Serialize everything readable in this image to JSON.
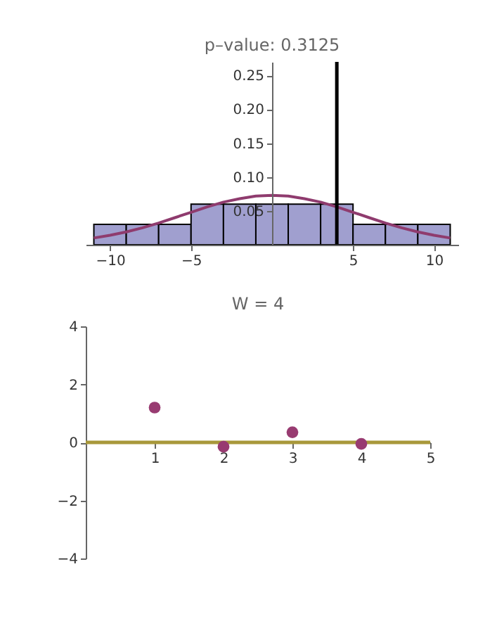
{
  "chart_data": [
    {
      "type": "histogram",
      "title": "p–value: 0.3125",
      "bins": [
        -11,
        -9,
        -7,
        -5,
        -3,
        -1,
        1,
        3,
        5,
        7,
        9,
        11
      ],
      "values": [
        0.03,
        0.03,
        0.03,
        0.06,
        0.06,
        0.06,
        0.06,
        0.06,
        0.03,
        0.03,
        0.03
      ],
      "color": "#a09fcf",
      "series": [
        {
          "type": "line",
          "color": "#8f3b6e",
          "x": [
            -11,
            -10,
            -9,
            -8,
            -7,
            -6,
            -5,
            -4,
            -3,
            -2,
            -1,
            0,
            1,
            2,
            3,
            4,
            5,
            6,
            7,
            8,
            9,
            10,
            11
          ],
          "values": [
            0.01,
            0.014,
            0.019,
            0.025,
            0.032,
            0.04,
            0.048,
            0.056,
            0.063,
            0.068,
            0.072,
            0.073,
            0.072,
            0.068,
            0.063,
            0.056,
            0.048,
            0.04,
            0.032,
            0.025,
            0.019,
            0.014,
            0.01
          ]
        }
      ],
      "xlim": [
        -11.5,
        11.5
      ],
      "xticks": [
        -10,
        -5,
        5,
        10
      ],
      "ylim": [
        0,
        0.27
      ],
      "yticks": [
        0.05,
        {
          "value": 0.1,
          "label": "0.10"
        },
        0.15,
        {
          "value": 0.2,
          "label": "0.20"
        },
        0.25
      ],
      "ref_lines": [
        {
          "axis": "x",
          "value": 4,
          "color": "#000000"
        }
      ]
    },
    {
      "type": "scatter",
      "title": "W = 4",
      "x": [
        1,
        2,
        3,
        4
      ],
      "values": [
        1.2,
        -0.15,
        0.35,
        -0.05
      ],
      "color": "#983b71",
      "marker": "circle",
      "xlim": [
        0,
        5
      ],
      "xticks": [
        1,
        2,
        3,
        4,
        5
      ],
      "ylim": [
        -4,
        4
      ],
      "yticks": [
        -4,
        -2,
        0,
        2,
        4
      ],
      "ref_lines": [
        {
          "axis": "y",
          "value": 0,
          "color": "#a8983a"
        }
      ]
    }
  ]
}
